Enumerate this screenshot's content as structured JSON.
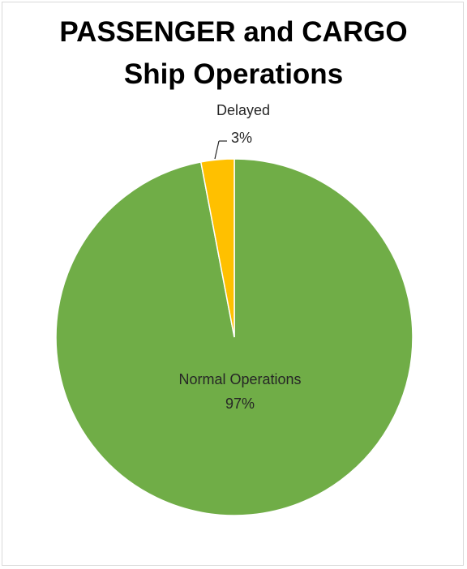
{
  "chart_data": {
    "type": "pie",
    "title_lines": [
      "PASSENGER and CARGO",
      "Ship Operations"
    ],
    "categories": [
      "Normal Operations",
      "Delayed"
    ],
    "values": [
      97,
      3
    ],
    "value_labels": [
      "97%",
      "3%"
    ],
    "colors": [
      "#70ad47",
      "#ffc000"
    ],
    "legend": "none"
  }
}
